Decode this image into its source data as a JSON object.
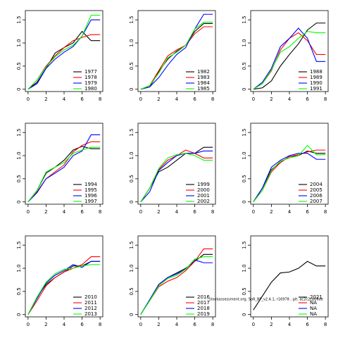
{
  "chart_data": [
    {
      "type": "line",
      "x": [
        0,
        1,
        2,
        3,
        4,
        5,
        6,
        7,
        8
      ],
      "xlim": [
        -0.3,
        8.3
      ],
      "xticks": [
        0,
        2,
        4,
        6,
        8
      ],
      "ylim": [
        -0.05,
        1.7
      ],
      "yticks": [
        0,
        0.5,
        {
          "value": 1,
          "label": "1.0"
        },
        1.5
      ],
      "legend": "bottom-right",
      "series": [
        {
          "name": "1977",
          "color": "#000000",
          "values": [
            0,
            0.15,
            0.45,
            0.78,
            0.9,
            1.0,
            1.25,
            1.05,
            1.05
          ]
        },
        {
          "name": "1978",
          "color": "#ff0000",
          "values": [
            0,
            0.2,
            0.5,
            0.72,
            0.9,
            1.05,
            1.12,
            1.18,
            1.18
          ]
        },
        {
          "name": "1979",
          "color": "#0000ff",
          "values": [
            0,
            0.12,
            0.45,
            0.65,
            0.8,
            0.92,
            1.15,
            1.5,
            1.5
          ]
        },
        {
          "name": "1980",
          "color": "#00ff00",
          "values": [
            0,
            0.2,
            0.48,
            0.7,
            0.85,
            0.95,
            1.15,
            1.6,
            1.6
          ]
        }
      ]
    },
    {
      "type": "line",
      "x": [
        0,
        1,
        2,
        3,
        4,
        5,
        6,
        7,
        8
      ],
      "xlim": [
        -0.3,
        8.3
      ],
      "xticks": [
        0,
        2,
        4,
        6,
        8
      ],
      "ylim": [
        -0.05,
        1.7
      ],
      "yticks": [
        0,
        0.5,
        {
          "value": 1,
          "label": "1.0"
        },
        1.5
      ],
      "legend": "bottom-right",
      "series": [
        {
          "name": "1982",
          "color": "#000000",
          "values": [
            0,
            0.05,
            0.38,
            0.65,
            0.82,
            0.95,
            1.25,
            1.42,
            1.42
          ]
        },
        {
          "name": "1983",
          "color": "#ff0000",
          "values": [
            0,
            0.08,
            0.4,
            0.72,
            0.85,
            0.95,
            1.2,
            1.35,
            1.35
          ]
        },
        {
          "name": "1984",
          "color": "#0000ff",
          "values": [
            0,
            0.05,
            0.25,
            0.52,
            0.75,
            0.9,
            1.3,
            1.62,
            1.62
          ]
        },
        {
          "name": "1985",
          "color": "#00ff00",
          "values": [
            0,
            0.08,
            0.35,
            0.68,
            0.8,
            0.95,
            1.3,
            1.45,
            1.45
          ]
        }
      ]
    },
    {
      "type": "line",
      "x": [
        0,
        1,
        2,
        3,
        4,
        5,
        6,
        7,
        8
      ],
      "xlim": [
        -0.3,
        8.3
      ],
      "xticks": [
        0,
        2,
        4,
        6,
        8
      ],
      "ylim": [
        -0.05,
        1.7
      ],
      "yticks": [
        0,
        0.5,
        {
          "value": 1,
          "label": "1.0"
        },
        1.5
      ],
      "legend": "bottom-right",
      "series": [
        {
          "name": "1988",
          "color": "#000000",
          "values": [
            0,
            0.03,
            0.18,
            0.5,
            0.75,
            0.98,
            1.28,
            1.43,
            1.43
          ]
        },
        {
          "name": "1989",
          "color": "#ff0000",
          "values": [
            0,
            0.12,
            0.4,
            0.85,
            1.1,
            1.22,
            1.05,
            0.75,
            0.75
          ]
        },
        {
          "name": "1990",
          "color": "#0000ff",
          "values": [
            0,
            0.15,
            0.45,
            0.92,
            1.1,
            1.32,
            1.1,
            0.6,
            0.6
          ]
        },
        {
          "name": "1991",
          "color": "#00ff00",
          "values": [
            0,
            0.12,
            0.42,
            0.8,
            0.92,
            1.1,
            1.25,
            1.22,
            1.22
          ]
        }
      ]
    },
    {
      "type": "line",
      "x": [
        0,
        1,
        2,
        3,
        4,
        5,
        6,
        7,
        8
      ],
      "xlim": [
        -0.3,
        8.3
      ],
      "xticks": [
        0,
        2,
        4,
        6,
        8
      ],
      "ylim": [
        -0.05,
        1.7
      ],
      "yticks": [
        0,
        0.5,
        {
          "value": 1,
          "label": "1.0"
        },
        1.5
      ],
      "legend": "bottom-right",
      "series": [
        {
          "name": "1994",
          "color": "#000000",
          "values": [
            0,
            0.25,
            0.62,
            0.75,
            0.9,
            1.12,
            1.2,
            1.15,
            1.15
          ]
        },
        {
          "name": "1995",
          "color": "#ff0000",
          "values": [
            0,
            0.22,
            0.5,
            0.65,
            0.8,
            1.08,
            1.22,
            1.3,
            1.3
          ]
        },
        {
          "name": "1996",
          "color": "#0000ff",
          "values": [
            0,
            0.2,
            0.5,
            0.62,
            0.75,
            1.0,
            1.1,
            1.45,
            1.45
          ]
        },
        {
          "name": "1997",
          "color": "#00ff00",
          "values": [
            0,
            0.25,
            0.65,
            0.75,
            0.85,
            1.05,
            1.12,
            1.18,
            1.18
          ]
        }
      ]
    },
    {
      "type": "line",
      "x": [
        0,
        1,
        2,
        3,
        4,
        5,
        6,
        7,
        8
      ],
      "xlim": [
        -0.3,
        8.3
      ],
      "xticks": [
        0,
        2,
        4,
        6,
        8
      ],
      "ylim": [
        -0.05,
        1.7
      ],
      "yticks": [
        0,
        0.5,
        {
          "value": 1,
          "label": "1.0"
        },
        1.5
      ],
      "legend": "bottom-right",
      "series": [
        {
          "name": "1999",
          "color": "#000000",
          "values": [
            0,
            0.3,
            0.65,
            0.75,
            0.9,
            1.05,
            1.05,
            1.18,
            1.18
          ]
        },
        {
          "name": "2000",
          "color": "#ff0000",
          "values": [
            0,
            0.3,
            0.7,
            0.9,
            1.0,
            1.12,
            1.05,
            0.95,
            0.95
          ]
        },
        {
          "name": "2001",
          "color": "#0000ff",
          "values": [
            0,
            0.22,
            0.68,
            0.85,
            1.0,
            1.05,
            1.05,
            1.1,
            1.1
          ]
        },
        {
          "name": "2002",
          "color": "#00ff00",
          "values": [
            0,
            0.3,
            0.72,
            0.95,
            1.02,
            1.05,
            1.0,
            0.9,
            0.9
          ]
        }
      ]
    },
    {
      "type": "line",
      "x": [
        0,
        1,
        2,
        3,
        4,
        5,
        6,
        7,
        8
      ],
      "xlim": [
        -0.3,
        8.3
      ],
      "xticks": [
        0,
        2,
        4,
        6,
        8
      ],
      "ylim": [
        -0.05,
        1.7
      ],
      "yticks": [
        0,
        0.5,
        {
          "value": 1,
          "label": "1.0"
        },
        1.5
      ],
      "legend": "bottom-right",
      "series": [
        {
          "name": "2004",
          "color": "#000000",
          "values": [
            0,
            0.3,
            0.7,
            0.85,
            0.98,
            1.0,
            1.1,
            1.05,
            1.05
          ]
        },
        {
          "name": "2005",
          "color": "#ff0000",
          "values": [
            0,
            0.25,
            0.65,
            0.85,
            0.98,
            1.02,
            1.08,
            1.12,
            1.12
          ]
        },
        {
          "name": "2006",
          "color": "#0000ff",
          "values": [
            0,
            0.3,
            0.75,
            0.9,
            1.0,
            1.05,
            1.05,
            0.92,
            0.92
          ]
        },
        {
          "name": "2007",
          "color": "#00ff00",
          "values": [
            0,
            0.25,
            0.68,
            0.88,
            0.95,
            1.0,
            1.22,
            1.02,
            1.02
          ]
        }
      ]
    },
    {
      "type": "line",
      "x": [
        0,
        1,
        2,
        3,
        4,
        5,
        6,
        7,
        8
      ],
      "xlim": [
        -0.3,
        8.3
      ],
      "xticks": [
        0,
        2,
        4,
        6,
        8
      ],
      "ylim": [
        -0.05,
        1.7
      ],
      "yticks": [
        0,
        0.5,
        {
          "value": 1,
          "label": "1.0"
        },
        1.5
      ],
      "legend": "bottom-right",
      "series": [
        {
          "name": "2010",
          "color": "#000000",
          "values": [
            0,
            0.38,
            0.65,
            0.8,
            0.92,
            1.05,
            1.05,
            1.15,
            1.15
          ]
        },
        {
          "name": "2011",
          "color": "#ff0000",
          "values": [
            0,
            0.3,
            0.62,
            0.8,
            0.92,
            1.0,
            1.08,
            1.25,
            1.25
          ]
        },
        {
          "name": "2012",
          "color": "#0000ff",
          "values": [
            0,
            0.35,
            0.68,
            0.85,
            0.95,
            1.08,
            1.02,
            1.15,
            1.15
          ]
        },
        {
          "name": "2013",
          "color": "#00ff00",
          "values": [
            0,
            0.38,
            0.7,
            0.88,
            0.98,
            1.0,
            1.05,
            1.08,
            1.08
          ]
        }
      ]
    },
    {
      "type": "line",
      "x": [
        0,
        1,
        2,
        3,
        4,
        5,
        6,
        7,
        8
      ],
      "xlim": [
        -0.3,
        8.3
      ],
      "xticks": [
        0,
        2,
        4,
        6,
        8
      ],
      "ylim": [
        -0.05,
        1.7
      ],
      "yticks": [
        0,
        0.5,
        {
          "value": 1,
          "label": "1.0"
        },
        1.5
      ],
      "legend": "bottom-right",
      "series": [
        {
          "name": "2016",
          "color": "#000000",
          "values": [
            0,
            0.32,
            0.65,
            0.8,
            0.9,
            1.0,
            1.15,
            1.3,
            1.3
          ]
        },
        {
          "name": "2017",
          "color": "#ff0000",
          "values": [
            0,
            0.3,
            0.6,
            0.72,
            0.8,
            0.95,
            1.15,
            1.42,
            1.42
          ]
        },
        {
          "name": "2018",
          "color": "#0000ff",
          "values": [
            0,
            0.32,
            0.65,
            0.8,
            0.88,
            0.98,
            1.18,
            1.12,
            1.12
          ]
        },
        {
          "name": "2019",
          "color": "#00ff00",
          "values": [
            0,
            0.3,
            0.62,
            0.78,
            0.85,
            0.98,
            1.2,
            1.25,
            1.25
          ]
        }
      ]
    },
    {
      "type": "line",
      "x": [
        0,
        1,
        2,
        3,
        4,
        5,
        6,
        7,
        8
      ],
      "xlim": [
        -0.3,
        8.3
      ],
      "xticks": [
        0,
        2,
        4,
        6,
        8
      ],
      "ylim": [
        -0.05,
        1.7
      ],
      "yticks": [
        0,
        0.5,
        {
          "value": 1,
          "label": "1.0"
        },
        1.5
      ],
      "legend": "bottom-right",
      "series": [
        {
          "name": "2021",
          "color": "#000000",
          "values": [
            0.1,
            0.4,
            0.7,
            0.9,
            0.92,
            1.0,
            1.15,
            1.05,
            1.05
          ]
        },
        {
          "name": "NA",
          "color": "#ff0000",
          "values": [
            null,
            null,
            null,
            null,
            null,
            null,
            null,
            null,
            null
          ]
        },
        {
          "name": "NA",
          "color": "#0000ff",
          "values": [
            null,
            null,
            null,
            null,
            null,
            null,
            null,
            null,
            null
          ]
        },
        {
          "name": "NA",
          "color": "#00ff00",
          "values": [
            null,
            null,
            null,
            null,
            null,
            null,
            null,
            null,
            null
          ]
        }
      ]
    }
  ],
  "footnote": "stockassessment.org, SoR_BP_v2.4.1, r16978 , git: ac2c2cb06de"
}
